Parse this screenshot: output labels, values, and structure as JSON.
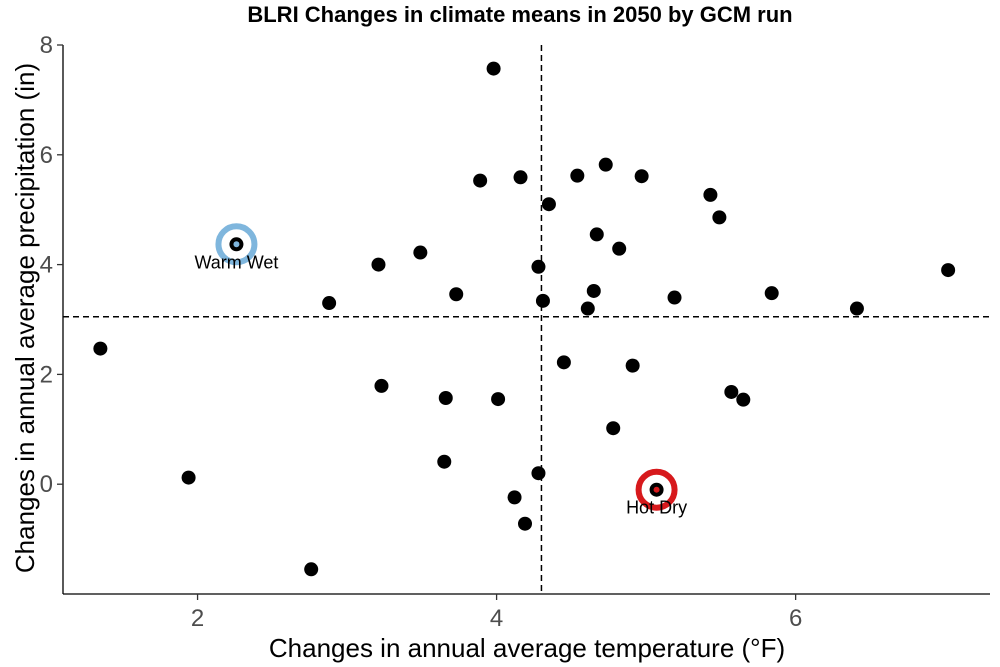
{
  "chart_data": {
    "type": "scatter",
    "title": "BLRI Changes in climate means in 2050 by GCM run",
    "xlabel": "Changes in annual average temperature (°F)",
    "ylabel": "Changes in annual average precipitation (in)",
    "xlim": [
      1.1,
      7.3
    ],
    "ylim": [
      -2.0,
      8.0
    ],
    "x_ticks": [
      2,
      4,
      6
    ],
    "y_ticks": [
      0,
      2,
      4,
      6,
      8
    ],
    "grid": false,
    "reference_lines": {
      "x": 4.3,
      "y": 3.05
    },
    "point_color": "#000000",
    "points": [
      {
        "x": 1.35,
        "y": 2.47
      },
      {
        "x": 1.94,
        "y": 0.12
      },
      {
        "x": 2.26,
        "y": 4.37
      },
      {
        "x": 2.76,
        "y": -1.55
      },
      {
        "x": 2.88,
        "y": 3.3
      },
      {
        "x": 3.21,
        "y": 4.0
      },
      {
        "x": 3.23,
        "y": 1.79
      },
      {
        "x": 3.49,
        "y": 4.22
      },
      {
        "x": 3.65,
        "y": 0.41
      },
      {
        "x": 3.66,
        "y": 1.57
      },
      {
        "x": 3.73,
        "y": 3.46
      },
      {
        "x": 3.89,
        "y": 5.53
      },
      {
        "x": 3.98,
        "y": 7.57
      },
      {
        "x": 4.01,
        "y": 1.55
      },
      {
        "x": 4.12,
        "y": -0.24
      },
      {
        "x": 4.16,
        "y": 5.59
      },
      {
        "x": 4.19,
        "y": -0.72
      },
      {
        "x": 4.28,
        "y": 0.2
      },
      {
        "x": 4.28,
        "y": 3.96
      },
      {
        "x": 4.31,
        "y": 3.34
      },
      {
        "x": 4.35,
        "y": 5.1
      },
      {
        "x": 4.45,
        "y": 2.22
      },
      {
        "x": 4.54,
        "y": 5.62
      },
      {
        "x": 4.61,
        "y": 3.2
      },
      {
        "x": 4.65,
        "y": 3.52
      },
      {
        "x": 4.67,
        "y": 4.55
      },
      {
        "x": 4.73,
        "y": 5.82
      },
      {
        "x": 4.78,
        "y": 1.02
      },
      {
        "x": 4.82,
        "y": 4.29
      },
      {
        "x": 4.91,
        "y": 2.16
      },
      {
        "x": 4.97,
        "y": 5.61
      },
      {
        "x": 5.07,
        "y": -0.1
      },
      {
        "x": 5.19,
        "y": 3.4
      },
      {
        "x": 5.43,
        "y": 5.27
      },
      {
        "x": 5.49,
        "y": 4.86
      },
      {
        "x": 5.57,
        "y": 1.68
      },
      {
        "x": 5.65,
        "y": 1.54
      },
      {
        "x": 5.84,
        "y": 3.48
      },
      {
        "x": 6.41,
        "y": 3.2
      },
      {
        "x": 7.02,
        "y": 3.9
      }
    ],
    "highlights": [
      {
        "label": "Warm Wet",
        "x": 2.26,
        "y": 4.37,
        "ring_color": "#7fb6dd",
        "inner_color": "#7fb6dd"
      },
      {
        "label": "Hot Dry",
        "x": 5.07,
        "y": -0.1,
        "ring_color": "#d7191c",
        "inner_color": "#d7191c"
      }
    ]
  }
}
